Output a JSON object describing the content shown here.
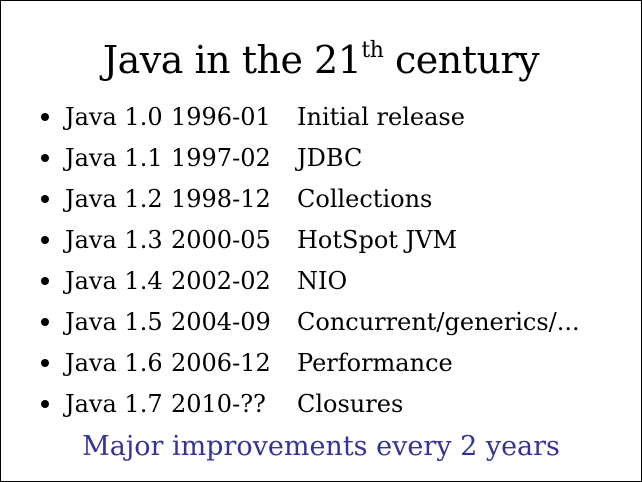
{
  "slide": {
    "title": {
      "prefix": "Java in the 21",
      "superscript": "th",
      "suffix": " century"
    },
    "items": [
      {
        "version": "Java 1.0",
        "date": "1996-01",
        "feature": "Initial release"
      },
      {
        "version": "Java 1.1",
        "date": "1997-02",
        "feature": "JDBC"
      },
      {
        "version": "Java 1.2",
        "date": "1998-12",
        "feature": "Collections"
      },
      {
        "version": "Java 1.3",
        "date": "2000-05",
        "feature": "HotSpot JVM"
      },
      {
        "version": "Java 1.4",
        "date": "2002-02",
        "feature": "NIO"
      },
      {
        "version": "Java 1.5",
        "date": "2004-09",
        "feature": "Concurrent/generics/..."
      },
      {
        "version": "Java 1.6",
        "date": "2006-12",
        "feature": "Performance"
      },
      {
        "version": "Java 1.7",
        "date": "2010-??",
        "feature": "Closures"
      }
    ],
    "footer": "Major improvements every 2 years",
    "colors": {
      "text": "#000000",
      "footer": "#333399",
      "background": "#ffffff",
      "border": "#000000"
    }
  }
}
